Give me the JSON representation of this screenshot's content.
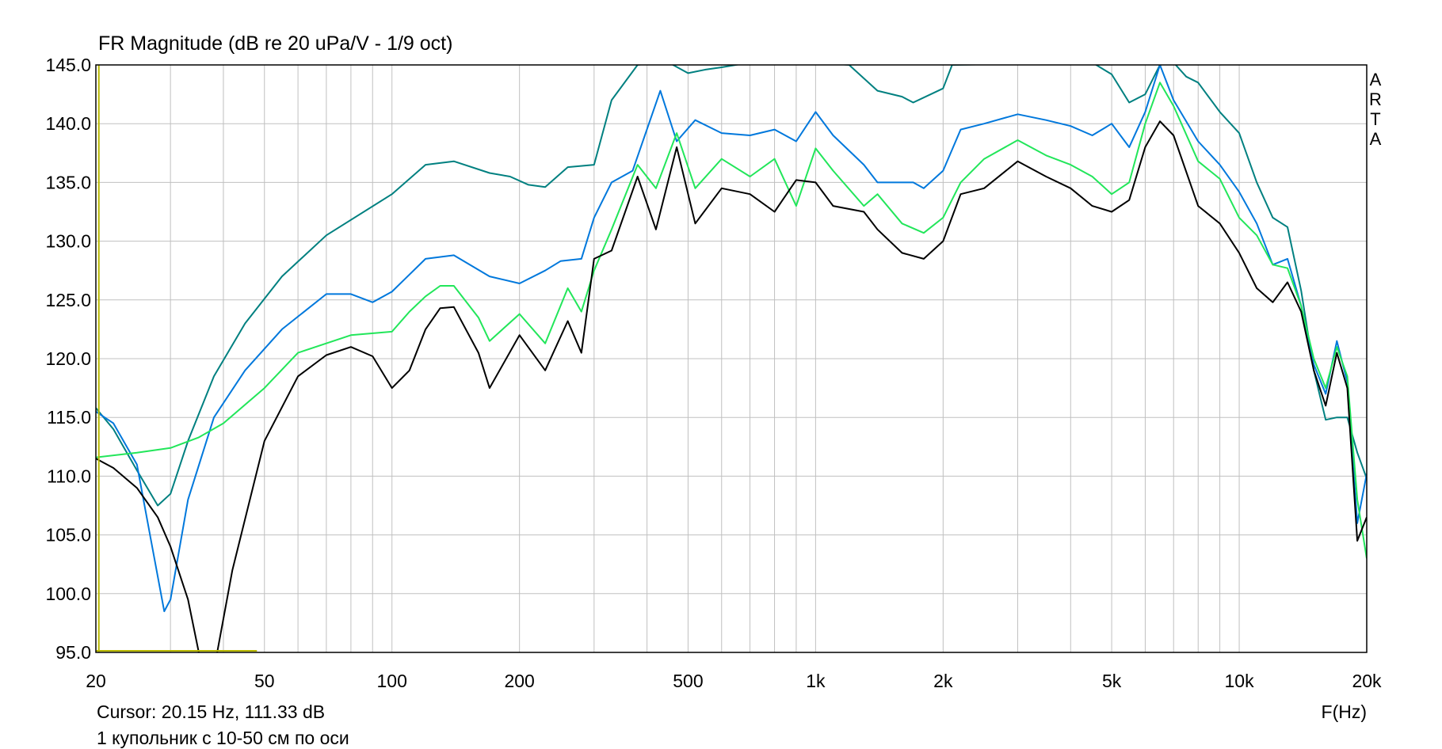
{
  "chart_data": {
    "type": "line",
    "title": "FR Magnitude (dB re 20 uPa/V - 1/9 oct)",
    "xlabel": "F(Hz)",
    "ylabel": "",
    "xscale": "log",
    "xlim": [
      20,
      20000
    ],
    "ylim": [
      95,
      145
    ],
    "grid": true,
    "x_tick_values": [
      20,
      50,
      100,
      200,
      500,
      1000,
      2000,
      5000,
      10000,
      20000
    ],
    "x_tick_labels": [
      "20",
      "50",
      "100",
      "200",
      "500",
      "1k",
      "2k",
      "5k",
      "10k",
      "20k"
    ],
    "y_ticks": [
      "145.0",
      "140.0",
      "135.0",
      "130.0",
      "125.0",
      "120.0",
      "115.0",
      "110.0",
      "105.0",
      "100.0",
      "95.0"
    ],
    "cursor_text": "Cursor: 20.15 Hz, 111.33 dB",
    "caption": "1 купольник с 10-50 см по оси",
    "brand": [
      "A",
      "R",
      "T",
      "A"
    ],
    "colors": {
      "background": "#ffffff",
      "grid": "#c0c0c0",
      "frame": "#000000",
      "cursor_marker": "#b8b800"
    },
    "series": [
      {
        "color": "#008080",
        "points": [
          [
            20,
            115.8
          ],
          [
            22,
            114
          ],
          [
            25,
            110.5
          ],
          [
            28,
            107.5
          ],
          [
            30,
            108.5
          ],
          [
            33,
            113
          ],
          [
            38,
            118.5
          ],
          [
            45,
            123
          ],
          [
            55,
            127
          ],
          [
            70,
            130.5
          ],
          [
            100,
            134
          ],
          [
            120,
            136.5
          ],
          [
            140,
            136.8
          ],
          [
            170,
            135.8
          ],
          [
            190,
            135.5
          ],
          [
            210,
            134.8
          ],
          [
            230,
            134.6
          ],
          [
            260,
            136.3
          ],
          [
            300,
            136.5
          ],
          [
            330,
            142
          ],
          [
            380,
            145
          ],
          [
            420,
            145.2
          ],
          [
            450,
            145.2
          ],
          [
            500,
            144.3
          ],
          [
            550,
            144.6
          ],
          [
            600,
            144.8
          ],
          [
            700,
            145.2
          ],
          [
            800,
            145.2
          ],
          [
            1000,
            145.2
          ],
          [
            1200,
            145
          ],
          [
            1400,
            142.8
          ],
          [
            1600,
            142.3
          ],
          [
            1700,
            141.8
          ],
          [
            2000,
            143
          ],
          [
            2100,
            145
          ],
          [
            4500,
            145.2
          ],
          [
            5000,
            144.2
          ],
          [
            5500,
            141.8
          ],
          [
            6000,
            142.5
          ],
          [
            6500,
            145
          ],
          [
            7000,
            145.2
          ],
          [
            7500,
            144
          ],
          [
            8000,
            143.5
          ],
          [
            9000,
            141
          ],
          [
            10000,
            139.2
          ],
          [
            11000,
            135
          ],
          [
            12000,
            132
          ],
          [
            13000,
            131.2
          ],
          [
            14000,
            125.8
          ],
          [
            15000,
            119
          ],
          [
            16000,
            114.8
          ],
          [
            17000,
            115
          ],
          [
            18000,
            115
          ],
          [
            19000,
            112
          ],
          [
            20000,
            109.8
          ]
        ]
      },
      {
        "color": "#0078dc",
        "points": [
          [
            20,
            115.5
          ],
          [
            22,
            114.5
          ],
          [
            25,
            111
          ],
          [
            27,
            104.5
          ],
          [
            29,
            98.5
          ],
          [
            30,
            99.5
          ],
          [
            33,
            108
          ],
          [
            38,
            115
          ],
          [
            45,
            119
          ],
          [
            55,
            122.5
          ],
          [
            70,
            125.5
          ],
          [
            80,
            125.5
          ],
          [
            90,
            124.8
          ],
          [
            100,
            125.7
          ],
          [
            120,
            128.5
          ],
          [
            140,
            128.8
          ],
          [
            170,
            127
          ],
          [
            200,
            126.4
          ],
          [
            230,
            127.5
          ],
          [
            250,
            128.3
          ],
          [
            280,
            128.5
          ],
          [
            300,
            132
          ],
          [
            330,
            135
          ],
          [
            370,
            136
          ],
          [
            430,
            142.8
          ],
          [
            470,
            138.5
          ],
          [
            520,
            140.3
          ],
          [
            600,
            139.2
          ],
          [
            700,
            139
          ],
          [
            800,
            139.5
          ],
          [
            900,
            138.5
          ],
          [
            1000,
            141
          ],
          [
            1100,
            139
          ],
          [
            1300,
            136.5
          ],
          [
            1400,
            135
          ],
          [
            1700,
            135
          ],
          [
            1800,
            134.5
          ],
          [
            2000,
            136
          ],
          [
            2200,
            139.5
          ],
          [
            2500,
            140
          ],
          [
            3000,
            140.8
          ],
          [
            3500,
            140.3
          ],
          [
            4000,
            139.8
          ],
          [
            4500,
            139
          ],
          [
            5000,
            140
          ],
          [
            5500,
            138
          ],
          [
            6000,
            141
          ],
          [
            6500,
            145
          ],
          [
            7000,
            142
          ],
          [
            8000,
            138.5
          ],
          [
            9000,
            136.5
          ],
          [
            10000,
            134.2
          ],
          [
            11000,
            131.5
          ],
          [
            12000,
            128
          ],
          [
            13000,
            128.5
          ],
          [
            14000,
            124.5
          ],
          [
            15000,
            119.5
          ],
          [
            16000,
            117
          ],
          [
            17000,
            121.5
          ],
          [
            18000,
            118
          ],
          [
            19000,
            106
          ],
          [
            20000,
            110.2
          ]
        ]
      },
      {
        "color": "#22e65a",
        "points": [
          [
            20,
            111.6
          ],
          [
            25,
            112
          ],
          [
            30,
            112.4
          ],
          [
            35,
            113.3
          ],
          [
            40,
            114.5
          ],
          [
            50,
            117.5
          ],
          [
            60,
            120.5
          ],
          [
            80,
            122
          ],
          [
            100,
            122.3
          ],
          [
            110,
            124
          ],
          [
            120,
            125.3
          ],
          [
            130,
            126.2
          ],
          [
            140,
            126.2
          ],
          [
            160,
            123.5
          ],
          [
            170,
            121.5
          ],
          [
            200,
            123.8
          ],
          [
            230,
            121.3
          ],
          [
            260,
            126
          ],
          [
            280,
            124
          ],
          [
            300,
            127.5
          ],
          [
            330,
            131
          ],
          [
            380,
            136.5
          ],
          [
            420,
            134.5
          ],
          [
            470,
            139.2
          ],
          [
            520,
            134.5
          ],
          [
            600,
            137
          ],
          [
            700,
            135.5
          ],
          [
            800,
            137
          ],
          [
            900,
            133
          ],
          [
            1000,
            137.9
          ],
          [
            1100,
            136
          ],
          [
            1300,
            133
          ],
          [
            1400,
            134
          ],
          [
            1600,
            131.5
          ],
          [
            1800,
            130.7
          ],
          [
            2000,
            132
          ],
          [
            2200,
            135
          ],
          [
            2500,
            137
          ],
          [
            3000,
            138.6
          ],
          [
            3500,
            137.3
          ],
          [
            4000,
            136.5
          ],
          [
            4500,
            135.5
          ],
          [
            5000,
            134
          ],
          [
            5500,
            135
          ],
          [
            6000,
            140
          ],
          [
            6500,
            143.5
          ],
          [
            7000,
            141.5
          ],
          [
            8000,
            136.8
          ],
          [
            9000,
            135.3
          ],
          [
            10000,
            132
          ],
          [
            11000,
            130.5
          ],
          [
            12000,
            128
          ],
          [
            13000,
            127.7
          ],
          [
            14000,
            124.5
          ],
          [
            15000,
            120
          ],
          [
            16000,
            117.5
          ],
          [
            17000,
            121
          ],
          [
            18000,
            118.5
          ],
          [
            19000,
            108
          ],
          [
            20000,
            103
          ]
        ]
      },
      {
        "color": "#000000",
        "points": [
          [
            20,
            111.5
          ],
          [
            22,
            110.7
          ],
          [
            25,
            109
          ],
          [
            28,
            106.5
          ],
          [
            30,
            104
          ],
          [
            33,
            99.5
          ],
          [
            35,
            95
          ],
          [
            38,
            93.5
          ],
          [
            42,
            102
          ],
          [
            50,
            113
          ],
          [
            60,
            118.5
          ],
          [
            70,
            120.3
          ],
          [
            80,
            121
          ],
          [
            90,
            120.2
          ],
          [
            100,
            117.5
          ],
          [
            110,
            119
          ],
          [
            120,
            122.5
          ],
          [
            130,
            124.3
          ],
          [
            140,
            124.4
          ],
          [
            160,
            120.5
          ],
          [
            170,
            117.5
          ],
          [
            200,
            122
          ],
          [
            230,
            119
          ],
          [
            260,
            123.2
          ],
          [
            280,
            120.5
          ],
          [
            300,
            128.5
          ],
          [
            330,
            129.2
          ],
          [
            380,
            135.5
          ],
          [
            420,
            131
          ],
          [
            470,
            138
          ],
          [
            520,
            131.5
          ],
          [
            600,
            134.5
          ],
          [
            700,
            134
          ],
          [
            800,
            132.5
          ],
          [
            900,
            135.2
          ],
          [
            1000,
            135
          ],
          [
            1100,
            133
          ],
          [
            1300,
            132.5
          ],
          [
            1400,
            131
          ],
          [
            1600,
            129
          ],
          [
            1800,
            128.5
          ],
          [
            2000,
            130
          ],
          [
            2200,
            134
          ],
          [
            2500,
            134.5
          ],
          [
            3000,
            136.8
          ],
          [
            3500,
            135.5
          ],
          [
            4000,
            134.5
          ],
          [
            4500,
            133
          ],
          [
            5000,
            132.5
          ],
          [
            5500,
            133.5
          ],
          [
            6000,
            138
          ],
          [
            6500,
            140.2
          ],
          [
            7000,
            139
          ],
          [
            8000,
            133
          ],
          [
            9000,
            131.5
          ],
          [
            10000,
            129
          ],
          [
            11000,
            126
          ],
          [
            12000,
            124.8
          ],
          [
            13000,
            126.5
          ],
          [
            14000,
            124
          ],
          [
            15000,
            119
          ],
          [
            16000,
            116
          ],
          [
            17000,
            120.5
          ],
          [
            18000,
            117.5
          ],
          [
            19000,
            104.5
          ],
          [
            20000,
            106.5
          ]
        ]
      }
    ]
  }
}
